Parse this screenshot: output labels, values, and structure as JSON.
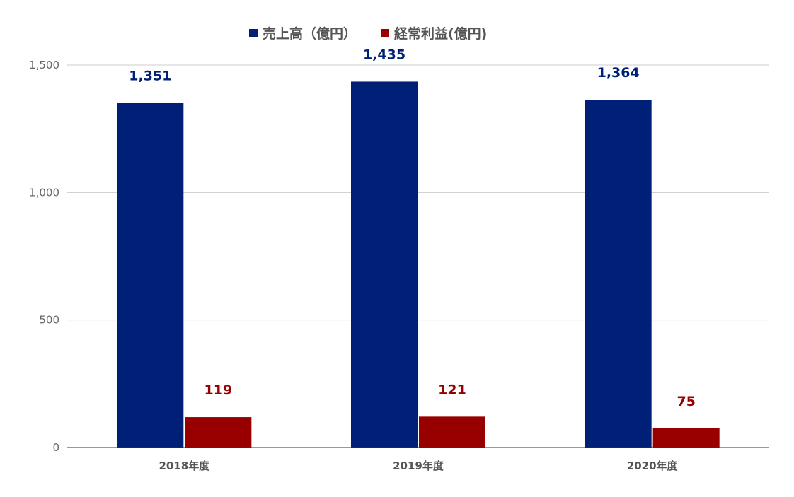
{
  "chart_data": {
    "type": "bar",
    "categories": [
      "2018年度",
      "2019年度",
      "2020年度"
    ],
    "series": [
      {
        "name": "売上高（億円）",
        "values": [
          1351,
          1435,
          1364
        ],
        "color": "#001f76",
        "labels": [
          "1,351",
          "1,435",
          "1,364"
        ]
      },
      {
        "name": "経常利益(億円)",
        "values": [
          119,
          121,
          75
        ],
        "color": "#980000",
        "labels": [
          "119",
          "121",
          "75"
        ]
      }
    ],
    "ylim": [
      0,
      1500
    ],
    "yticks": [
      0,
      500,
      1000,
      1500
    ],
    "ytick_labels": [
      "0",
      "500",
      "1,000",
      "1,500"
    ],
    "grid": true,
    "legend_position": "top-center",
    "data_labels": true
  }
}
